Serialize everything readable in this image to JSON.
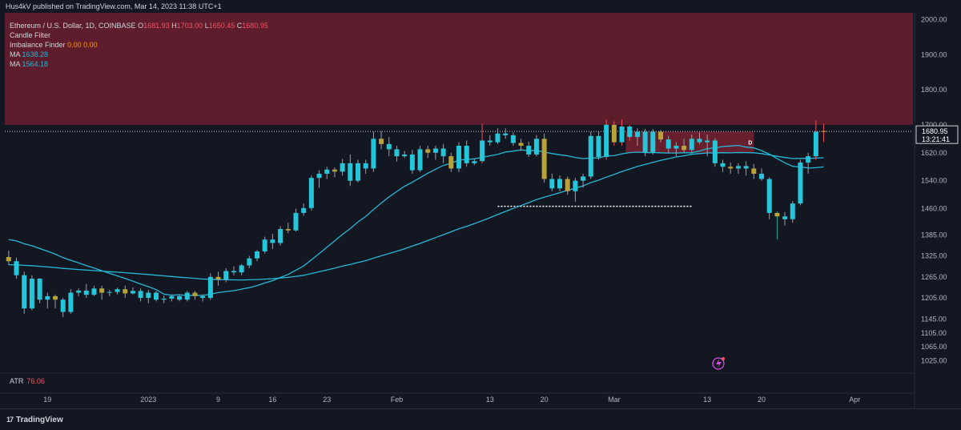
{
  "header": {
    "publisher": "Hus4kV published on TradingView.com, Mar 14, 2023 11:38 UTC+1"
  },
  "legend": {
    "symbol": "Ethereum / U.S. Dollar, 1D, COINBASE",
    "open_label": "O",
    "open": "1681.93",
    "high_label": "H",
    "high": "1703.00",
    "low_label": "L",
    "low": "1650.45",
    "close_label": "C",
    "close": "1680.95",
    "candle_filter": "Candle Filter",
    "imbalance_label": "Imbalance Finder",
    "imbalance_v1": "0.00",
    "imbalance_v2": "0.00",
    "ma1_label": "MA",
    "ma1_value": "1638.28",
    "ma2_label": "MA",
    "ma2_value": "1564.18"
  },
  "atr": {
    "label": "ATR",
    "value": "76.06"
  },
  "price_badge": {
    "price": "1680.95",
    "countdown": "13:21:41"
  },
  "zone_label": "D",
  "footer": {
    "brand": "TradingView",
    "brand_mark": "17"
  },
  "colors": {
    "bg": "#131722",
    "up": "#26c6da",
    "down": "#26c6da",
    "yellow_body": "#b8a23a",
    "wick_red": "#f7525f",
    "wick_green": "#26a69a",
    "ma": "#26b8d8",
    "zone_upper": "#6b1f2e",
    "zone_lower": "#6b1f2e"
  },
  "chart_data": {
    "type": "candlestick",
    "y_axis": {
      "min": 990,
      "max": 2020,
      "ticks": [
        2000,
        1900,
        1800,
        1700,
        1620,
        1540,
        1460,
        1385,
        1325,
        1265,
        1205,
        1145,
        1105,
        1065,
        1025
      ],
      "tick_labels": [
        "2000.00",
        "1900.00",
        "1800.00",
        "1700.00",
        "1620.00",
        "1540.00",
        "1460.00",
        "1385.00",
        "1325.00",
        "1265.00",
        "1205.00",
        "1145.00",
        "1105.00",
        "1065.00",
        "1025.00"
      ]
    },
    "x_axis": {
      "tick_labels": [
        "19",
        "2023",
        "9",
        "16",
        "23",
        "Feb",
        "13",
        "20",
        "Mar",
        "13",
        "20",
        "Apr"
      ],
      "tick_days": [
        5,
        18,
        27,
        34,
        41,
        50,
        62,
        69,
        78,
        90,
        97,
        109
      ]
    },
    "day_count_visible": 117,
    "current_price": 1680.95,
    "ma1": {
      "last": 1638.28
    },
    "ma2": {
      "last": 1564.18
    },
    "zones": [
      {
        "name": "upper-resistance",
        "top": 2020,
        "bottom": 1700,
        "start_day": 0,
        "end_day": 117
      },
      {
        "name": "daily-imbalance",
        "top": 1680,
        "bottom": 1620,
        "start_day": 80,
        "end_day": 96
      }
    ],
    "low_line": {
      "price": 1467,
      "start_day": 63,
      "end_day": 88
    },
    "candles": [
      [
        1322,
        1340,
        1300,
        1310
      ],
      [
        1310,
        1320,
        1260,
        1270
      ],
      [
        1270,
        1280,
        1160,
        1175
      ],
      [
        1175,
        1270,
        1170,
        1260
      ],
      [
        1260,
        1262,
        1190,
        1200
      ],
      [
        1200,
        1220,
        1175,
        1210
      ],
      [
        1210,
        1215,
        1175,
        1200
      ],
      [
        1200,
        1205,
        1150,
        1165
      ],
      [
        1165,
        1230,
        1160,
        1220
      ],
      [
        1220,
        1232,
        1210,
        1226
      ],
      [
        1226,
        1245,
        1205,
        1214
      ],
      [
        1214,
        1240,
        1210,
        1232
      ],
      [
        1232,
        1240,
        1200,
        1220
      ],
      [
        1220,
        1228,
        1210,
        1222
      ],
      [
        1222,
        1234,
        1215,
        1230
      ],
      [
        1230,
        1240,
        1205,
        1218
      ],
      [
        1218,
        1235,
        1215,
        1225
      ],
      [
        1225,
        1232,
        1195,
        1205
      ],
      [
        1205,
        1228,
        1190,
        1220
      ],
      [
        1220,
        1225,
        1195,
        1200
      ],
      [
        1200,
        1212,
        1190,
        1203
      ],
      [
        1203,
        1215,
        1195,
        1210
      ],
      [
        1210,
        1213,
        1195,
        1200
      ],
      [
        1200,
        1225,
        1195,
        1220
      ],
      [
        1220,
        1225,
        1200,
        1210
      ],
      [
        1210,
        1215,
        1195,
        1205
      ],
      [
        1205,
        1275,
        1200,
        1265
      ],
      [
        1265,
        1280,
        1240,
        1258
      ],
      [
        1258,
        1290,
        1250,
        1282
      ],
      [
        1282,
        1295,
        1270,
        1278
      ],
      [
        1278,
        1302,
        1270,
        1298
      ],
      [
        1298,
        1325,
        1290,
        1318
      ],
      [
        1318,
        1342,
        1310,
        1338
      ],
      [
        1338,
        1380,
        1332,
        1372
      ],
      [
        1372,
        1388,
        1345,
        1362
      ],
      [
        1362,
        1410,
        1355,
        1402
      ],
      [
        1402,
        1420,
        1390,
        1398
      ],
      [
        1398,
        1460,
        1395,
        1448
      ],
      [
        1448,
        1475,
        1440,
        1462
      ],
      [
        1462,
        1555,
        1455,
        1548
      ],
      [
        1548,
        1570,
        1520,
        1560
      ],
      [
        1560,
        1580,
        1545,
        1572
      ],
      [
        1572,
        1578,
        1550,
        1566
      ],
      [
        1566,
        1602,
        1555,
        1590
      ],
      [
        1590,
        1615,
        1525,
        1540
      ],
      [
        1540,
        1600,
        1535,
        1590
      ],
      [
        1590,
        1600,
        1560,
        1575
      ],
      [
        1575,
        1680,
        1565,
        1660
      ],
      [
        1660,
        1682,
        1630,
        1645
      ],
      [
        1645,
        1665,
        1610,
        1630
      ],
      [
        1630,
        1640,
        1595,
        1610
      ],
      [
        1610,
        1625,
        1605,
        1615
      ],
      [
        1615,
        1628,
        1560,
        1570
      ],
      [
        1570,
        1640,
        1565,
        1630
      ],
      [
        1630,
        1640,
        1605,
        1620
      ],
      [
        1620,
        1640,
        1600,
        1632
      ],
      [
        1632,
        1645,
        1590,
        1610
      ],
      [
        1610,
        1620,
        1565,
        1575
      ],
      [
        1575,
        1650,
        1565,
        1640
      ],
      [
        1640,
        1655,
        1580,
        1590
      ],
      [
        1590,
        1602,
        1585,
        1596
      ],
      [
        1596,
        1702,
        1590,
        1655
      ],
      [
        1655,
        1670,
        1640,
        1650
      ],
      [
        1650,
        1690,
        1645,
        1675
      ],
      [
        1675,
        1690,
        1660,
        1670
      ],
      [
        1670,
        1678,
        1640,
        1648
      ],
      [
        1648,
        1660,
        1625,
        1640
      ],
      [
        1640,
        1652,
        1608,
        1615
      ],
      [
        1615,
        1670,
        1610,
        1660
      ],
      [
        1660,
        1675,
        1535,
        1545
      ],
      [
        1545,
        1560,
        1510,
        1518
      ],
      [
        1518,
        1555,
        1510,
        1545
      ],
      [
        1545,
        1552,
        1500,
        1510
      ],
      [
        1510,
        1548,
        1480,
        1540
      ],
      [
        1540,
        1560,
        1520,
        1552
      ],
      [
        1552,
        1680,
        1545,
        1668
      ],
      [
        1668,
        1680,
        1600,
        1608
      ],
      [
        1608,
        1715,
        1600,
        1700
      ],
      [
        1700,
        1710,
        1640,
        1650
      ],
      [
        1650,
        1715,
        1640,
        1695
      ],
      [
        1695,
        1700,
        1655,
        1665
      ],
      [
        1665,
        1690,
        1640,
        1680
      ],
      [
        1680,
        1688,
        1610,
        1622
      ],
      [
        1622,
        1688,
        1615,
        1680
      ],
      [
        1680,
        1685,
        1650,
        1658
      ],
      [
        1658,
        1668,
        1620,
        1632
      ],
      [
        1632,
        1650,
        1610,
        1640
      ],
      [
        1640,
        1660,
        1620,
        1628
      ],
      [
        1628,
        1672,
        1620,
        1660
      ],
      [
        1660,
        1678,
        1645,
        1650
      ],
      [
        1650,
        1672,
        1610,
        1655
      ],
      [
        1655,
        1662,
        1580,
        1590
      ],
      [
        1590,
        1600,
        1565,
        1580
      ],
      [
        1580,
        1592,
        1560,
        1575
      ],
      [
        1575,
        1590,
        1560,
        1582
      ],
      [
        1582,
        1595,
        1555,
        1575
      ],
      [
        1575,
        1588,
        1545,
        1560
      ],
      [
        1560,
        1575,
        1540,
        1545
      ],
      [
        1545,
        1550,
        1430,
        1448
      ],
      [
        1448,
        1452,
        1372,
        1438
      ],
      [
        1438,
        1450,
        1412,
        1430
      ],
      [
        1430,
        1482,
        1420,
        1475
      ],
      [
        1475,
        1600,
        1470,
        1592
      ],
      [
        1592,
        1620,
        1560,
        1610
      ],
      [
        1610,
        1712,
        1600,
        1680
      ],
      [
        1681.93,
        1703,
        1650.45,
        1680.95
      ]
    ]
  }
}
